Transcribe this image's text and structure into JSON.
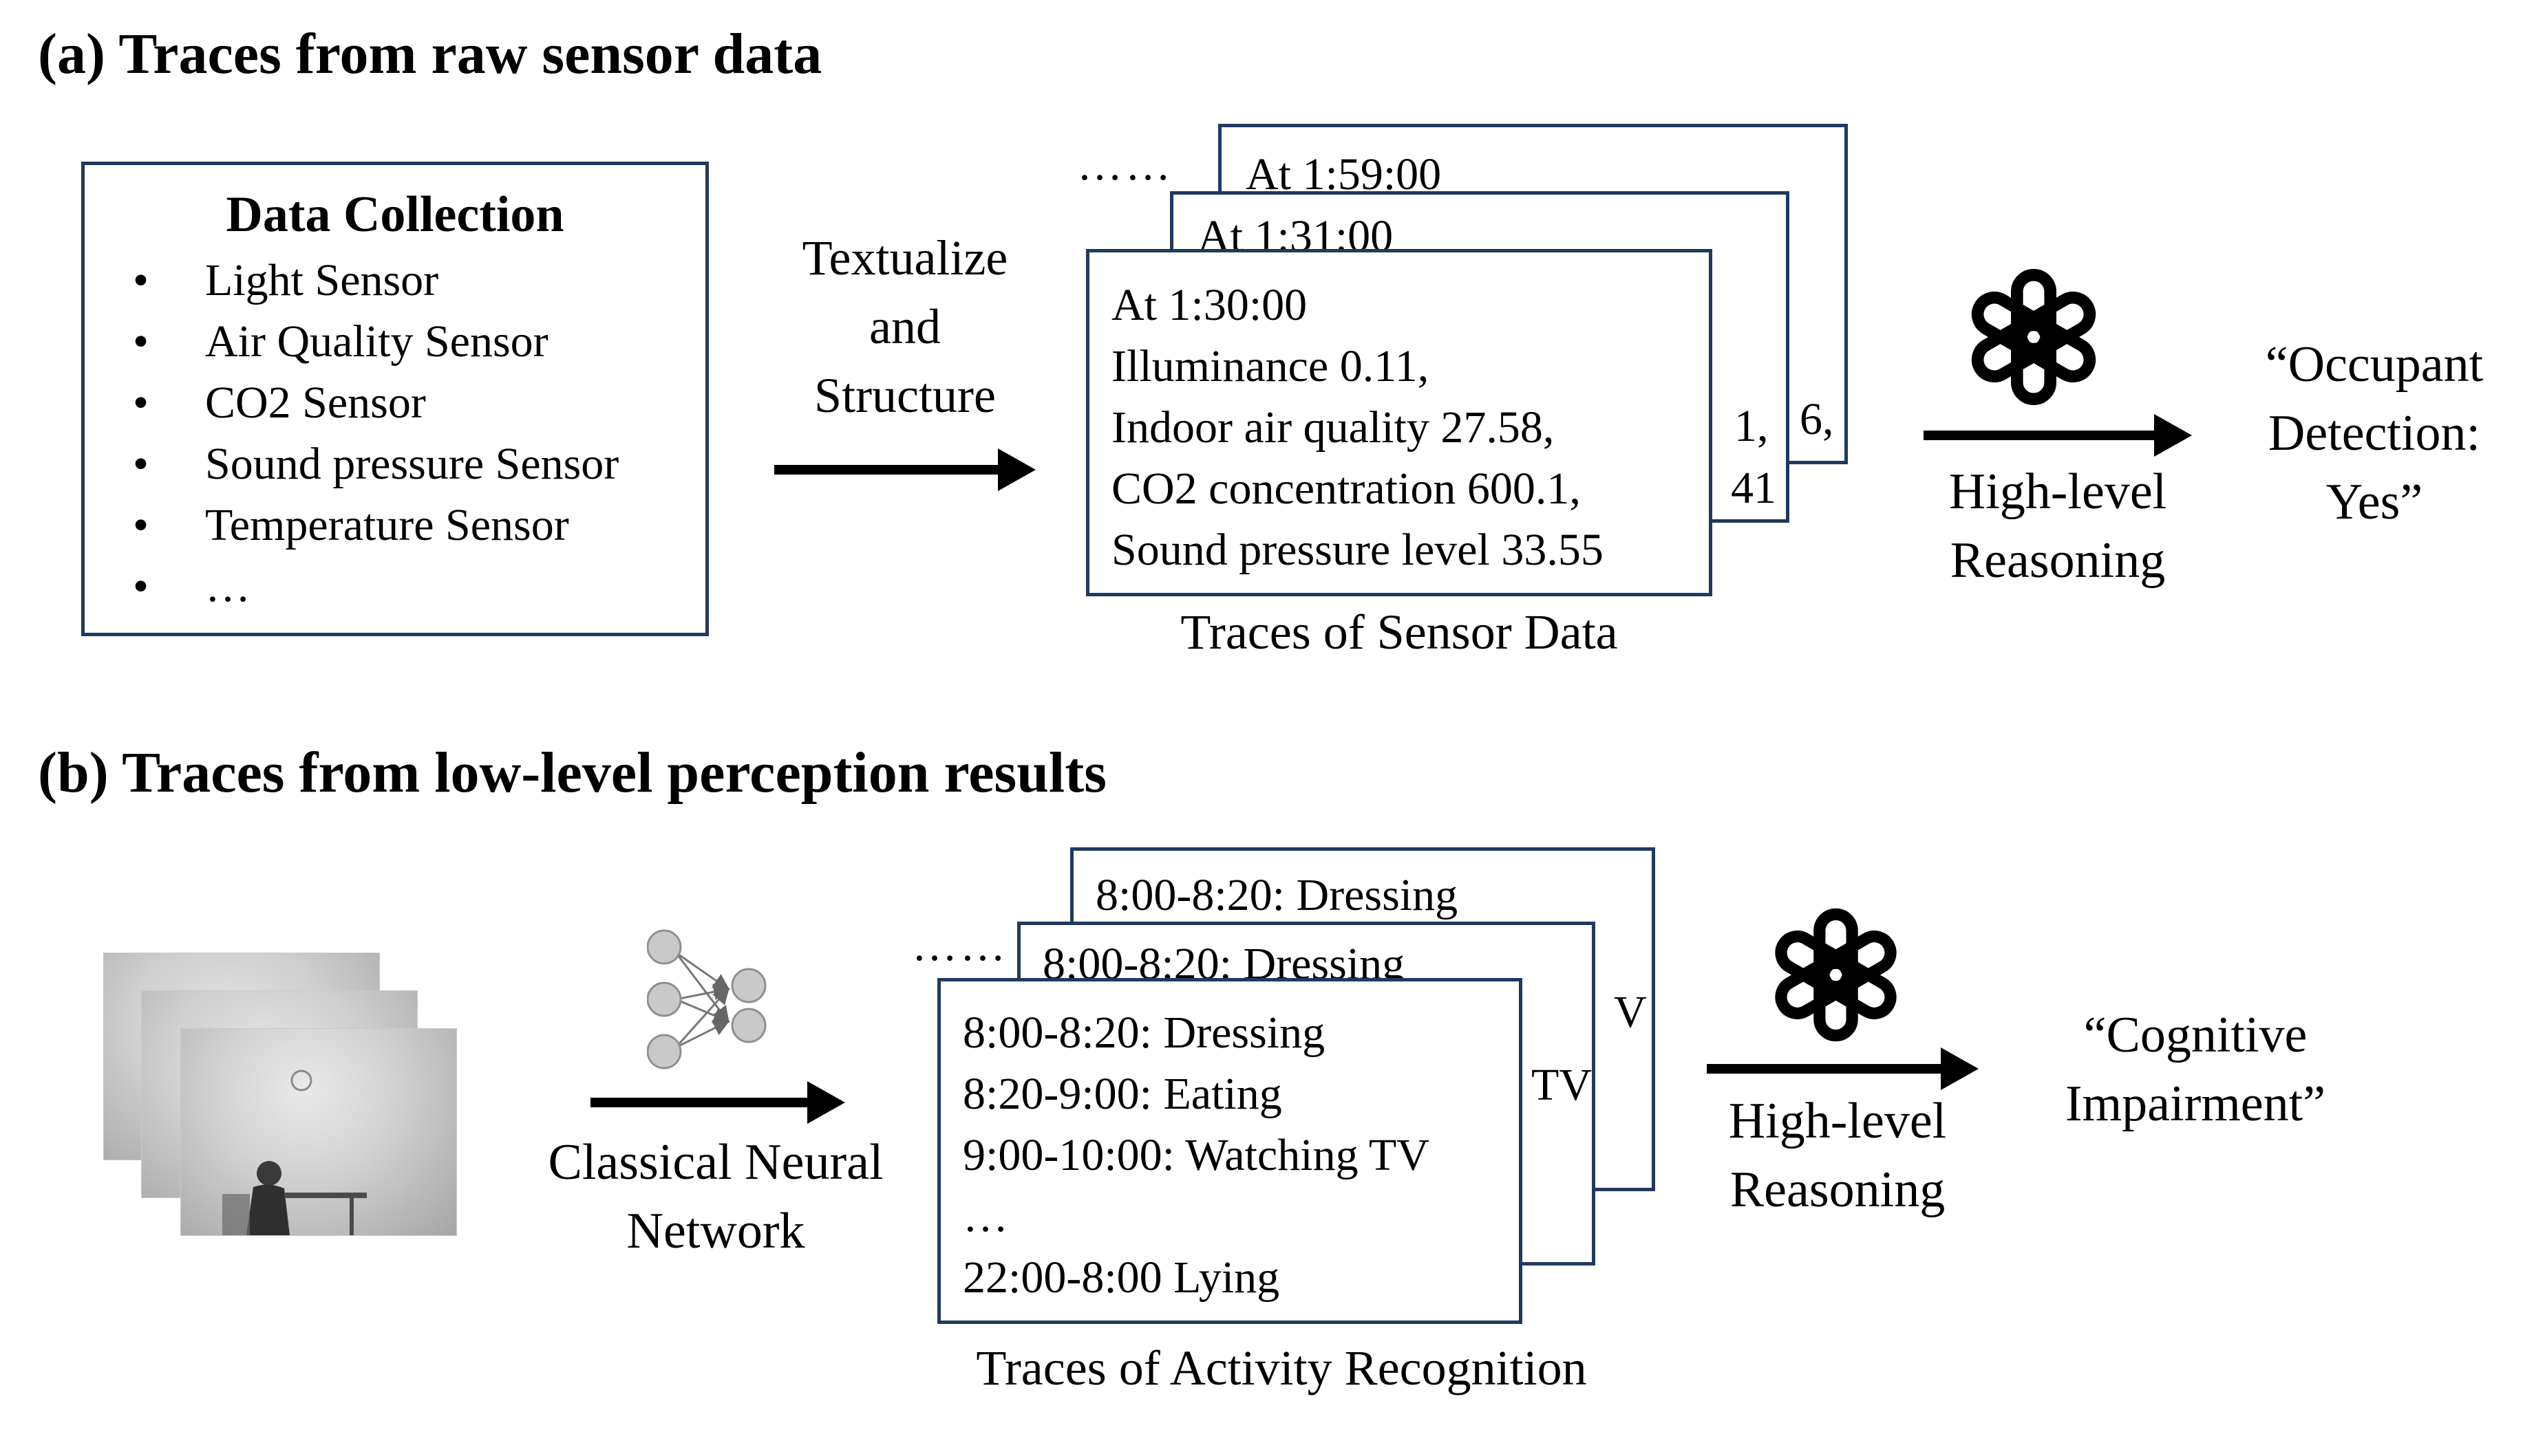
{
  "section_a": {
    "title": "(a) Traces from raw sensor data",
    "data_collection": {
      "heading": "Data Collection",
      "items": [
        "Light Sensor",
        "Air Quality Sensor",
        "CO2 Sensor",
        "Sound pressure Sensor",
        "Temperature Sensor",
        "…"
      ]
    },
    "step_label": [
      "Textualize",
      "and",
      "Structure"
    ],
    "ellipsis": "……",
    "card_back": {
      "time": "At 1:59:00",
      "fragment": "6,"
    },
    "card_mid": {
      "time": "At 1:31:00",
      "fragment_a": "1,",
      "fragment_b": "41"
    },
    "card_front": {
      "lines": [
        "At 1:30:00",
        "Illuminance 0.11,",
        "Indoor air quality 27.58,",
        "CO2 concentration 600.1,",
        "Sound pressure level 33.55"
      ]
    },
    "caption": "Traces of Sensor Data",
    "reasoning_label": [
      "High-level",
      "Reasoning"
    ],
    "output": [
      "“Occupant",
      "Detection:",
      "Yes”"
    ]
  },
  "section_b": {
    "title": "(b) Traces from low-level perception results",
    "network_label": [
      "Classical Neural",
      "Network"
    ],
    "ellipsis": "……",
    "card_back": {
      "line": "8:00-8:20: Dressing",
      "fragment": "V"
    },
    "card_mid": {
      "line": "8:00-8:20: Dressing",
      "fragment": "TV"
    },
    "card_front": {
      "lines": [
        "8:00-8:20: Dressing",
        "8:20-9:00: Eating",
        "9:00-10:00: Watching TV",
        "…",
        "22:00-8:00 Lying"
      ]
    },
    "caption": "Traces of Activity Recognition",
    "reasoning_label": [
      "High-level",
      "Reasoning"
    ],
    "output": [
      "“Cognitive",
      "Impairment”"
    ]
  },
  "colors": {
    "box_border": "#1f3a5f",
    "arrow": "#000000",
    "node_fill": "#c9c9c9"
  },
  "icons": {
    "reasoning_logo": "openai-knot-logo",
    "network_icon": "neural-network-icon"
  }
}
